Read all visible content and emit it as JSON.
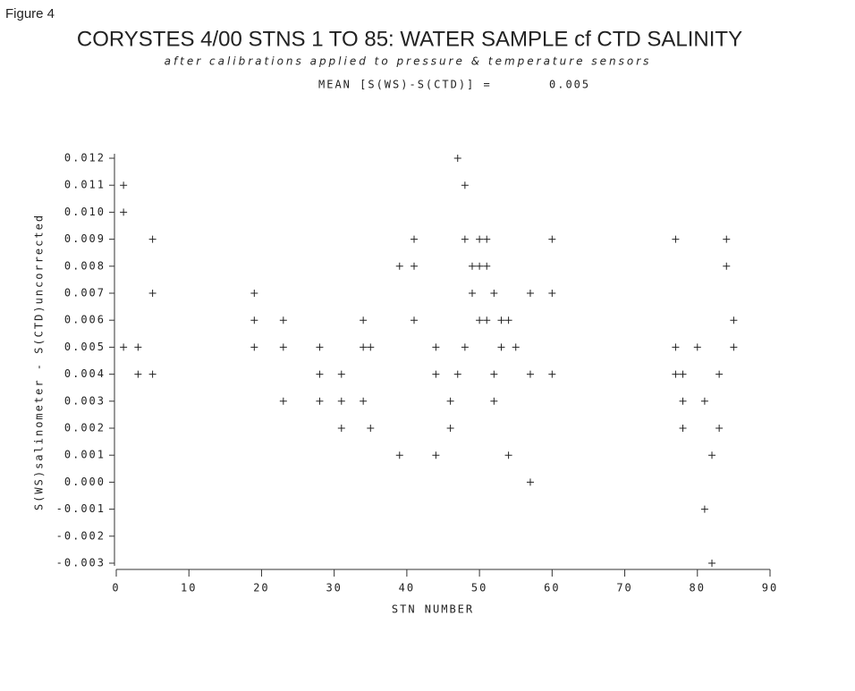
{
  "figure_label": "Figure 4",
  "chart_data": {
    "type": "scatter",
    "title": "CORYSTES 4/00 STNS 1 TO 85: WATER SAMPLE cf CTD SALINITY",
    "subtitle": "after calibrations applied to pressure & temperature sensors",
    "annotation": {
      "label": "MEAN [S(WS)-S(CTD)] =",
      "value": 0.005
    },
    "xlabel": "STN NUMBER",
    "ylabel": "S(WS)salinometer - S(CTD)uncorrected",
    "color": "#222222",
    "xlim": [
      0,
      90
    ],
    "xticks": [
      0,
      10,
      20,
      30,
      40,
      50,
      60,
      70,
      80,
      90
    ],
    "ylim": [
      -0.003,
      0.012
    ],
    "yticks": [
      -0.003,
      -0.002,
      -0.001,
      {
        "value": 0,
        "label": "0.000"
      },
      0.001,
      0.002,
      0.003,
      0.004,
      0.005,
      0.006,
      0.007,
      0.008,
      0.009,
      {
        "value": 0.01,
        "label": "0.010"
      },
      0.011,
      0.012
    ],
    "x": [
      1,
      1,
      1,
      3,
      3,
      5,
      5,
      5,
      19,
      19,
      19,
      23,
      23,
      23,
      28,
      28,
      28,
      31,
      31,
      31,
      34,
      34,
      35,
      34,
      35,
      39,
      41,
      41,
      41,
      39,
      44,
      44,
      44,
      47,
      48,
      48,
      50,
      51,
      49,
      50,
      51,
      49,
      52,
      50,
      51,
      53,
      54,
      48,
      53,
      55,
      47,
      52,
      46,
      52,
      46,
      54,
      57,
      60,
      60,
      57,
      60,
      57,
      77,
      77,
      77,
      78,
      78,
      78,
      80,
      81,
      83,
      83,
      82,
      81,
      82,
      84,
      84,
      85,
      85
    ],
    "y": [
      0.011,
      0.01,
      0.005,
      0.005,
      0.004,
      0.009,
      0.007,
      0.004,
      0.007,
      0.006,
      0.005,
      0.006,
      0.005,
      0.003,
      0.005,
      0.004,
      0.003,
      0.004,
      0.003,
      0.002,
      0.006,
      0.005,
      0.005,
      0.003,
      0.002,
      0.008,
      0.008,
      0.009,
      0.006,
      0.001,
      0.005,
      0.004,
      0.001,
      0.012,
      0.011,
      0.009,
      0.009,
      0.009,
      0.008,
      0.008,
      0.008,
      0.007,
      0.007,
      0.006,
      0.006,
      0.006,
      0.006,
      0.005,
      0.005,
      0.005,
      0.004,
      0.004,
      0.003,
      0.003,
      0.002,
      0.001,
      0.007,
      0.007,
      0.009,
      0.004,
      0.004,
      0,
      0.009,
      0.005,
      0.004,
      0.004,
      0.003,
      0.002,
      0.005,
      0.003,
      0.004,
      0.002,
      0.001,
      -0.001,
      -0.003,
      0.009,
      0.008,
      0.006,
      0.005
    ]
  }
}
